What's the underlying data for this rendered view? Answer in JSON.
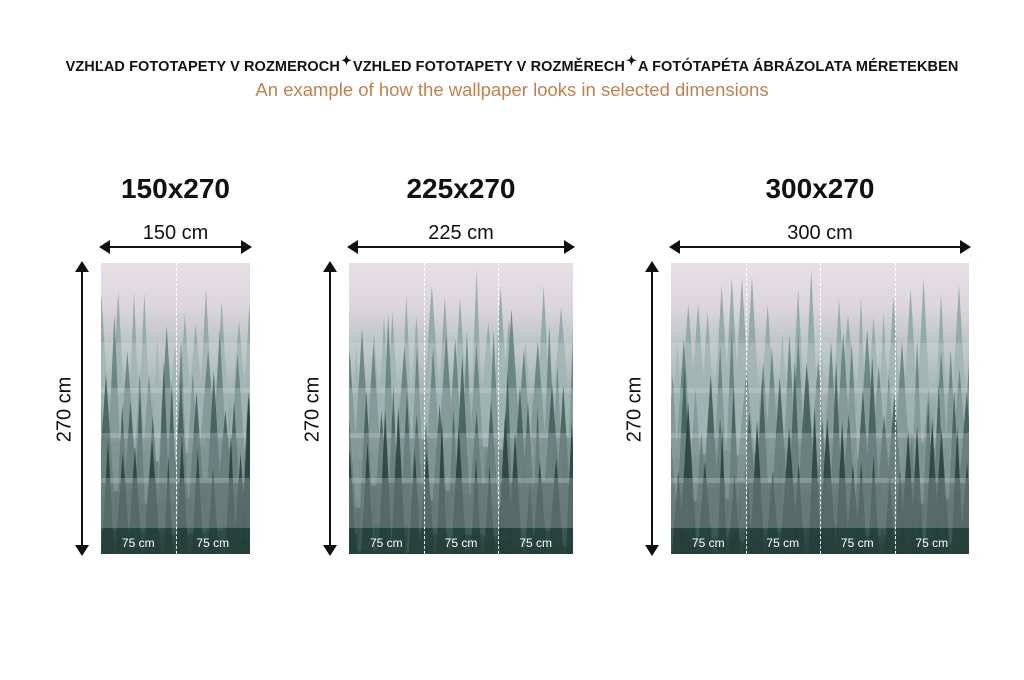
{
  "header": {
    "title_parts": [
      "VZHĽAD FOTOTAPETY V ROZMEROCH",
      "VZHLED FOTOTAPETY V ROZMĚRECH",
      "A FOTÓTAPÉTA ÁBRÁZOLATA MÉRETEKBEN"
    ],
    "separator_icon": "sparkle-icon",
    "subtitle": "An example of how the wallpaper looks in selected dimensions"
  },
  "colors": {
    "subtitle": "#c08050",
    "text": "#111111"
  },
  "variants": [
    {
      "title": "150x270",
      "width_label": "150 cm",
      "height_label": "270 cm",
      "strips": [
        "75 cm",
        "75 cm"
      ]
    },
    {
      "title": "225x270",
      "width_label": "225 cm",
      "height_label": "270 cm",
      "strips": [
        "75 cm",
        "75 cm",
        "75 cm"
      ]
    },
    {
      "title": "300x270",
      "width_label": "300 cm",
      "height_label": "270 cm",
      "strips": [
        "75 cm",
        "75 cm",
        "75 cm",
        "75 cm"
      ]
    }
  ]
}
